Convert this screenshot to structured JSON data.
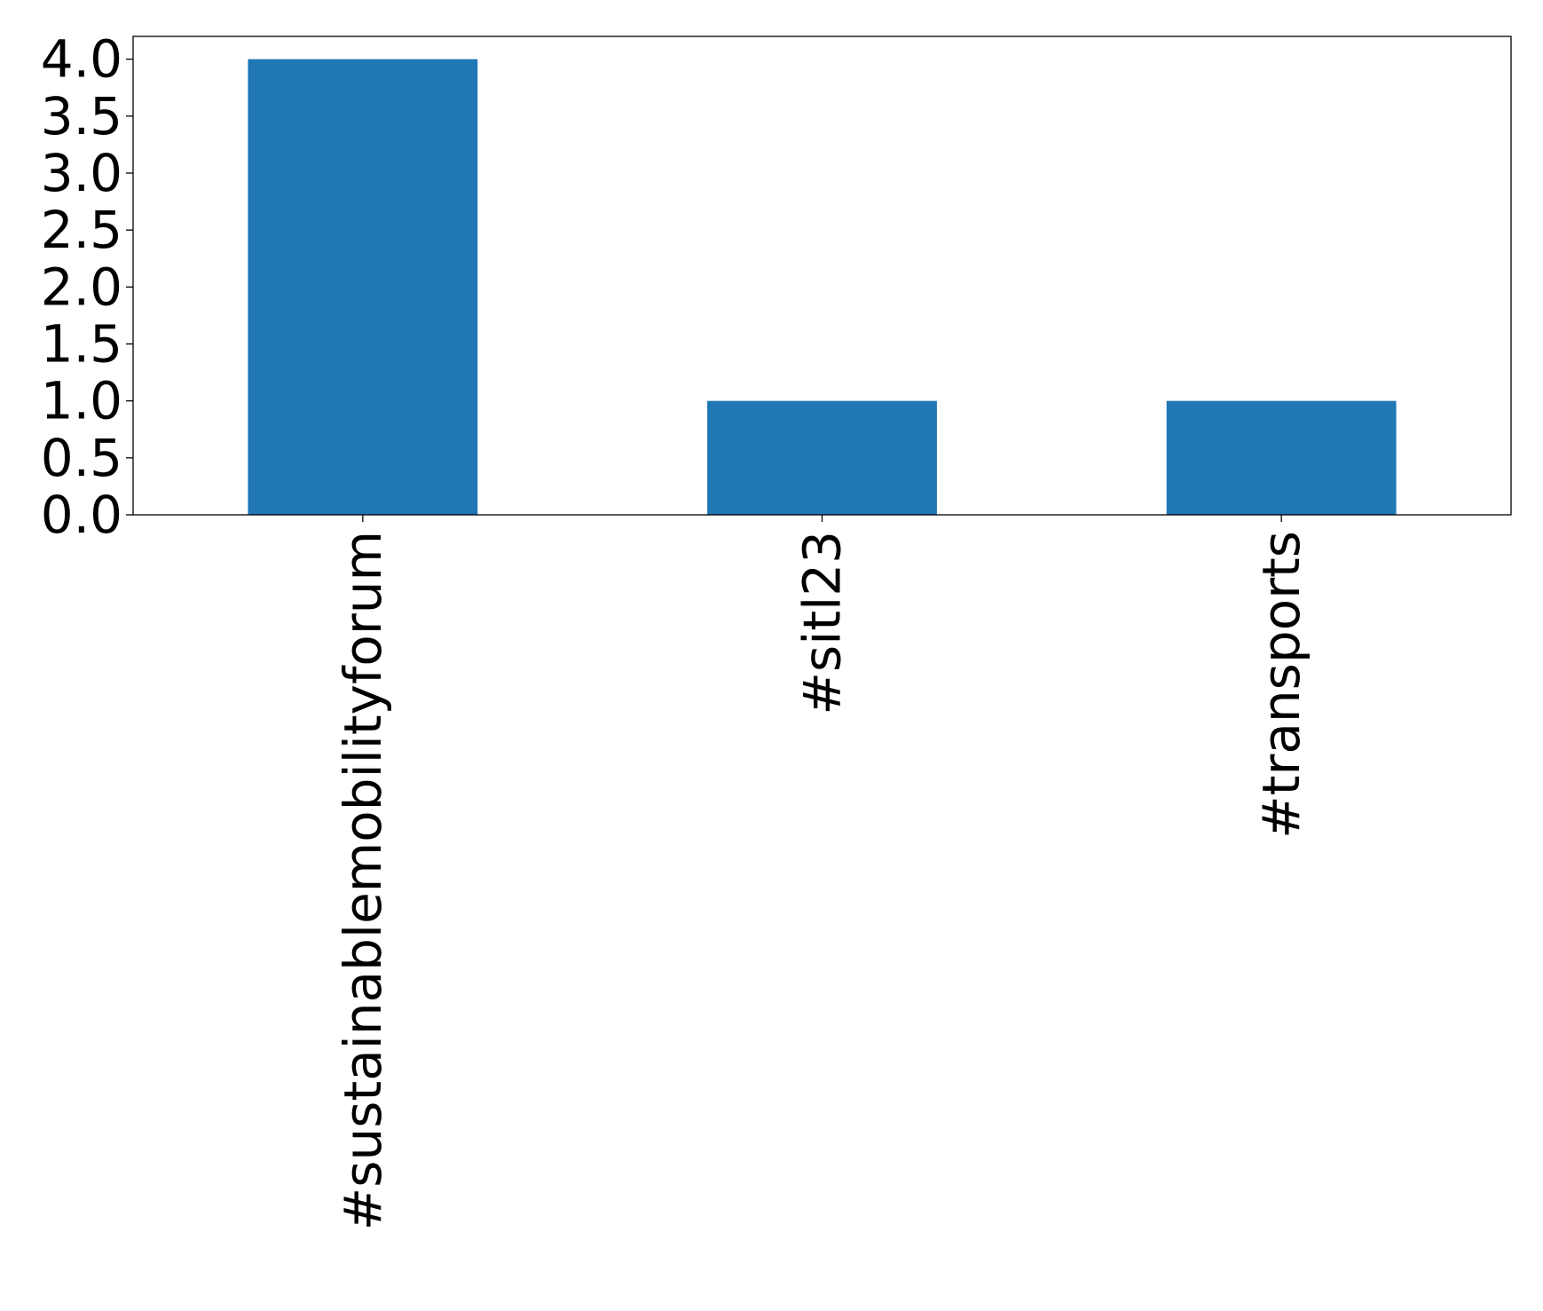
{
  "chart_data": {
    "type": "bar",
    "categories": [
      "#sustainablemobilityforum",
      "#sitl23",
      "#transports"
    ],
    "values": [
      4,
      1,
      1
    ],
    "title": "",
    "xlabel": "",
    "ylabel": "",
    "ylim": [
      0,
      4.2
    ],
    "yticks": [
      "0.0",
      "0.5",
      "1.0",
      "1.5",
      "2.0",
      "2.5",
      "3.0",
      "3.5",
      "4.0"
    ],
    "grid": false,
    "bar_color": "#1f77b4"
  }
}
